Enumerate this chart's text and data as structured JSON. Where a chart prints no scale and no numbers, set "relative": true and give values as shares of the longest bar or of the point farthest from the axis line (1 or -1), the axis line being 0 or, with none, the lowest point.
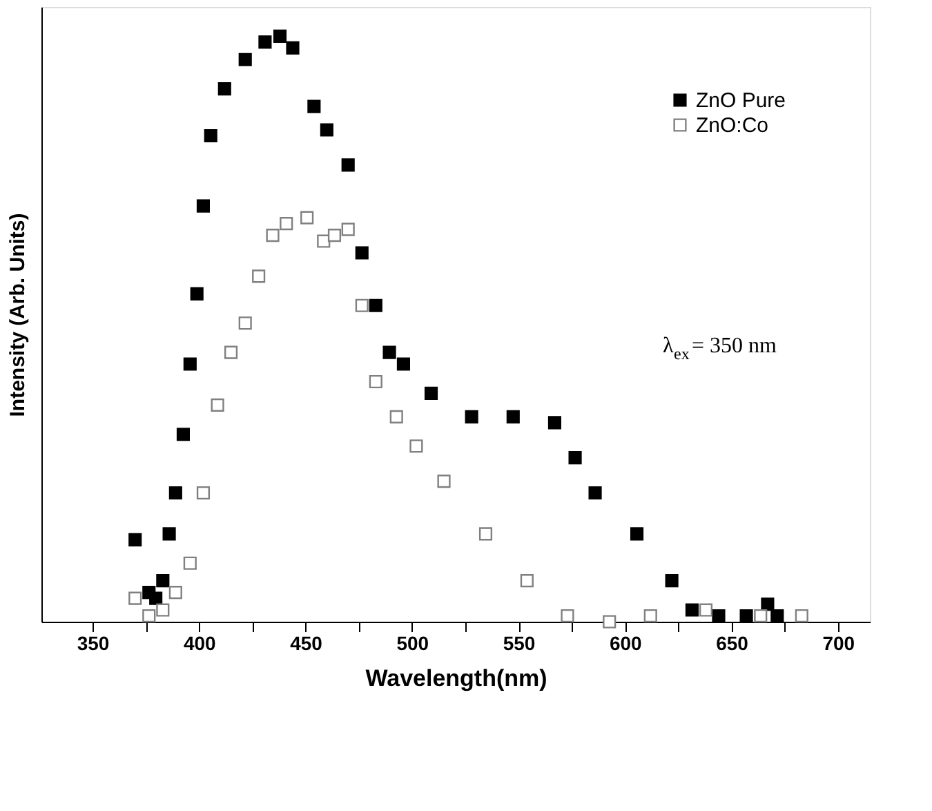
{
  "chart_data": {
    "type": "scatter",
    "xlabel": "Wavelength(nm)",
    "ylabel": "Intensity (Arb. Units)",
    "relative": true,
    "marker": "square",
    "legend": "top right",
    "grid": false,
    "xlim": [
      326,
      715
    ],
    "xticks": [
      350,
      {
        "value": 375,
        "label": null
      },
      400,
      {
        "value": 425,
        "label": null
      },
      450,
      {
        "value": 475,
        "label": null
      },
      500,
      {
        "value": 525,
        "label": null
      },
      550,
      {
        "value": 575,
        "label": null
      },
      600,
      {
        "value": 625,
        "label": null
      },
      650,
      {
        "value": 675,
        "label": null
      },
      700
    ],
    "annotations": [
      "λ$_{ex}$= 350 nm"
    ],
    "series": [
      {
        "name": "ZnO Pure",
        "color": "#000000",
        "x": [
          370,
          376.5,
          379.7,
          383,
          386,
          389,
          392.6,
          395.8,
          399,
          402,
          405.5,
          412,
          421.7,
          431,
          438,
          444,
          454,
          460,
          470,
          476.5,
          483,
          489.4,
          496,
          509,
          528,
          547.5,
          567,
          576.6,
          586,
          605.6,
          622,
          631.5,
          644,
          657,
          667,
          671.5
        ],
        "values": [
          0.14,
          0.05,
          0.04,
          0.07,
          0.15,
          0.22,
          0.32,
          0.44,
          0.56,
          0.71,
          0.83,
          0.91,
          0.96,
          0.99,
          1,
          0.98,
          0.88,
          0.84,
          0.78,
          0.63,
          0.54,
          0.46,
          0.44,
          0.39,
          0.35,
          0.35,
          0.34,
          0.28,
          0.22,
          0.15,
          0.07,
          0.02,
          0.01,
          0.01,
          0.03,
          0.01
        ]
      },
      {
        "name": "ZnO:Co",
        "color": "#808080",
        "x": [
          370,
          376.5,
          383,
          389,
          395.8,
          402,
          408.7,
          415,
          421.7,
          428,
          434.6,
          441,
          450.7,
          458.5,
          463.6,
          470,
          476.5,
          483,
          492.7,
          502,
          515,
          534.6,
          554,
          573,
          592.7,
          612,
          638,
          663.7,
          683
        ],
        "values": [
          0.04,
          0.01,
          0.02,
          0.05,
          0.1,
          0.22,
          0.37,
          0.46,
          0.51,
          0.59,
          0.66,
          0.68,
          0.69,
          0.65,
          0.66,
          0.67,
          0.54,
          0.41,
          0.35,
          0.3,
          0.24,
          0.15,
          0.07,
          0.01,
          0,
          0.01,
          0.02,
          0.01,
          0.01
        ]
      }
    ]
  }
}
